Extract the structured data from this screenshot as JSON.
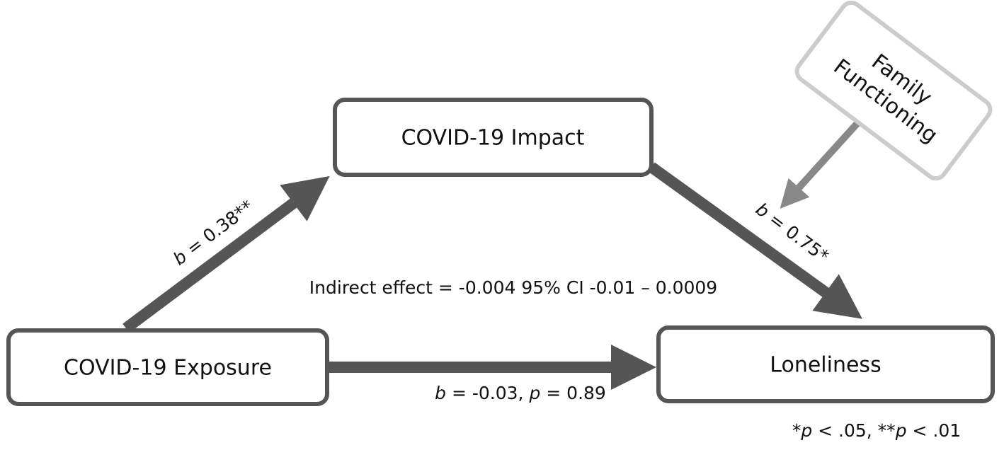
{
  "nodes": [
    {
      "label": "COVID-19 Impact"
    },
    {
      "label": "COVID-19 Exposure"
    },
    {
      "label": "Loneliness"
    },
    {
      "label": [
        "Family",
        "Functioning"
      ]
    }
  ],
  "edges": [
    {
      "label": [
        {
          "text": "b",
          "italic": true
        },
        {
          "text": " = 0.38**"
        }
      ]
    },
    {
      "label": [
        {
          "text": "b",
          "italic": true
        },
        {
          "text": " = 0.75*"
        }
      ]
    },
    {
      "label": [
        {
          "text": "b",
          "italic": true
        },
        {
          "text": " = -0.03, "
        },
        {
          "text": "p",
          "italic": true
        },
        {
          "text": " = 0.89"
        }
      ]
    }
  ],
  "indirect_effect": "Indirect effect = -0.004  95% CI -0.01 – 0.0009",
  "note": [
    {
      "text": "*"
    },
    {
      "text": "p",
      "italic": true
    },
    {
      "text": " < .05, **"
    },
    {
      "text": "p",
      "italic": true
    },
    {
      "text": " < .01"
    }
  ]
}
